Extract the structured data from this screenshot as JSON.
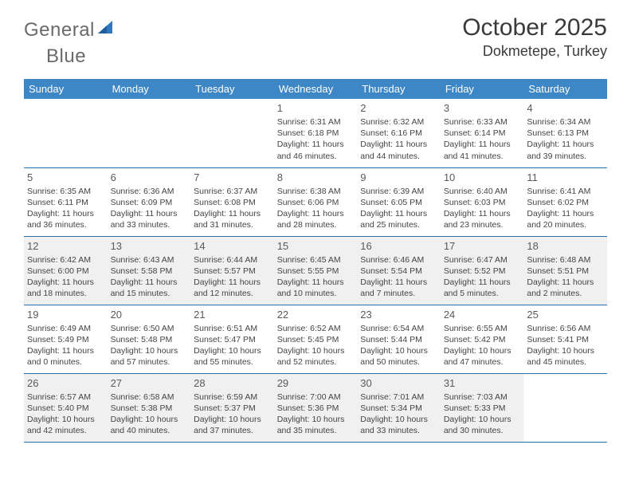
{
  "brand": {
    "general": "General",
    "blue": "Blue"
  },
  "title": "October 2025",
  "location": "Dokmetepe, Turkey",
  "colors": {
    "header_bg": "#3d87c7",
    "header_fg": "#ffffff",
    "row_border": "#2c6ea8",
    "shade_bg": "#f0f0f0",
    "text": "#444444",
    "daynum": "#5a5a5a",
    "logo_gray": "#6a6a6a",
    "logo_blue": "#2f78bf"
  },
  "weekdays": [
    "Sunday",
    "Monday",
    "Tuesday",
    "Wednesday",
    "Thursday",
    "Friday",
    "Saturday"
  ],
  "weeks": [
    {
      "shade": false,
      "days": [
        null,
        null,
        null,
        {
          "n": "1",
          "sunrise": "6:31 AM",
          "sunset": "6:18 PM",
          "dl": "11 hours and 46 minutes."
        },
        {
          "n": "2",
          "sunrise": "6:32 AM",
          "sunset": "6:16 PM",
          "dl": "11 hours and 44 minutes."
        },
        {
          "n": "3",
          "sunrise": "6:33 AM",
          "sunset": "6:14 PM",
          "dl": "11 hours and 41 minutes."
        },
        {
          "n": "4",
          "sunrise": "6:34 AM",
          "sunset": "6:13 PM",
          "dl": "11 hours and 39 minutes."
        }
      ]
    },
    {
      "shade": false,
      "days": [
        {
          "n": "5",
          "sunrise": "6:35 AM",
          "sunset": "6:11 PM",
          "dl": "11 hours and 36 minutes."
        },
        {
          "n": "6",
          "sunrise": "6:36 AM",
          "sunset": "6:09 PM",
          "dl": "11 hours and 33 minutes."
        },
        {
          "n": "7",
          "sunrise": "6:37 AM",
          "sunset": "6:08 PM",
          "dl": "11 hours and 31 minutes."
        },
        {
          "n": "8",
          "sunrise": "6:38 AM",
          "sunset": "6:06 PM",
          "dl": "11 hours and 28 minutes."
        },
        {
          "n": "9",
          "sunrise": "6:39 AM",
          "sunset": "6:05 PM",
          "dl": "11 hours and 25 minutes."
        },
        {
          "n": "10",
          "sunrise": "6:40 AM",
          "sunset": "6:03 PM",
          "dl": "11 hours and 23 minutes."
        },
        {
          "n": "11",
          "sunrise": "6:41 AM",
          "sunset": "6:02 PM",
          "dl": "11 hours and 20 minutes."
        }
      ]
    },
    {
      "shade": true,
      "days": [
        {
          "n": "12",
          "sunrise": "6:42 AM",
          "sunset": "6:00 PM",
          "dl": "11 hours and 18 minutes."
        },
        {
          "n": "13",
          "sunrise": "6:43 AM",
          "sunset": "5:58 PM",
          "dl": "11 hours and 15 minutes."
        },
        {
          "n": "14",
          "sunrise": "6:44 AM",
          "sunset": "5:57 PM",
          "dl": "11 hours and 12 minutes."
        },
        {
          "n": "15",
          "sunrise": "6:45 AM",
          "sunset": "5:55 PM",
          "dl": "11 hours and 10 minutes."
        },
        {
          "n": "16",
          "sunrise": "6:46 AM",
          "sunset": "5:54 PM",
          "dl": "11 hours and 7 minutes."
        },
        {
          "n": "17",
          "sunrise": "6:47 AM",
          "sunset": "5:52 PM",
          "dl": "11 hours and 5 minutes."
        },
        {
          "n": "18",
          "sunrise": "6:48 AM",
          "sunset": "5:51 PM",
          "dl": "11 hours and 2 minutes."
        }
      ]
    },
    {
      "shade": false,
      "days": [
        {
          "n": "19",
          "sunrise": "6:49 AM",
          "sunset": "5:49 PM",
          "dl": "11 hours and 0 minutes."
        },
        {
          "n": "20",
          "sunrise": "6:50 AM",
          "sunset": "5:48 PM",
          "dl": "10 hours and 57 minutes."
        },
        {
          "n": "21",
          "sunrise": "6:51 AM",
          "sunset": "5:47 PM",
          "dl": "10 hours and 55 minutes."
        },
        {
          "n": "22",
          "sunrise": "6:52 AM",
          "sunset": "5:45 PM",
          "dl": "10 hours and 52 minutes."
        },
        {
          "n": "23",
          "sunrise": "6:54 AM",
          "sunset": "5:44 PM",
          "dl": "10 hours and 50 minutes."
        },
        {
          "n": "24",
          "sunrise": "6:55 AM",
          "sunset": "5:42 PM",
          "dl": "10 hours and 47 minutes."
        },
        {
          "n": "25",
          "sunrise": "6:56 AM",
          "sunset": "5:41 PM",
          "dl": "10 hours and 45 minutes."
        }
      ]
    },
    {
      "shade": true,
      "days": [
        {
          "n": "26",
          "sunrise": "6:57 AM",
          "sunset": "5:40 PM",
          "dl": "10 hours and 42 minutes."
        },
        {
          "n": "27",
          "sunrise": "6:58 AM",
          "sunset": "5:38 PM",
          "dl": "10 hours and 40 minutes."
        },
        {
          "n": "28",
          "sunrise": "6:59 AM",
          "sunset": "5:37 PM",
          "dl": "10 hours and 37 minutes."
        },
        {
          "n": "29",
          "sunrise": "7:00 AM",
          "sunset": "5:36 PM",
          "dl": "10 hours and 35 minutes."
        },
        {
          "n": "30",
          "sunrise": "7:01 AM",
          "sunset": "5:34 PM",
          "dl": "10 hours and 33 minutes."
        },
        {
          "n": "31",
          "sunrise": "7:03 AM",
          "sunset": "5:33 PM",
          "dl": "10 hours and 30 minutes."
        },
        null
      ]
    }
  ],
  "labels": {
    "sunrise": "Sunrise:",
    "sunset": "Sunset:",
    "daylight": "Daylight:"
  }
}
